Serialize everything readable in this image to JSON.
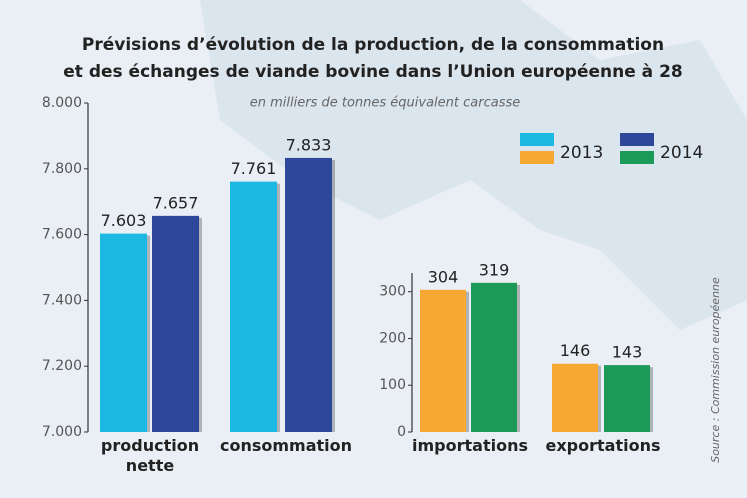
{
  "chart_data": [
    {
      "type": "bar",
      "title": [
        "Prévisions d’évolution de la production, de la consommation",
        "et des échanges de viande bovine dans l’Union européenne à 28"
      ],
      "subtitle": "en milliers de tonnes équivalent carcasse",
      "source": "Source : Commission européenne",
      "categories": [
        "production nette",
        "consommation"
      ],
      "series": [
        {
          "name": "2013",
          "color": "#1bb8e4",
          "values": [
            7603,
            7761
          ],
          "value_labels": [
            "7.603",
            "7.761"
          ]
        },
        {
          "name": "2014",
          "color": "#2e4899",
          "values": [
            7657,
            7833
          ],
          "value_labels": [
            "7.657",
            "7.833"
          ]
        }
      ],
      "ylim": [
        7000,
        8000
      ],
      "yticks": [
        {
          "value": 7000,
          "label": "7.000"
        },
        {
          "value": 7200,
          "label": "7.200"
        },
        {
          "value": 7400,
          "label": "7.400"
        },
        {
          "value": 7600,
          "label": "7.600"
        },
        {
          "value": 7800,
          "label": "7.800"
        },
        {
          "value": 8000,
          "label": "8.000"
        }
      ],
      "grid": false
    },
    {
      "type": "bar",
      "categories": [
        "importations",
        "exportations"
      ],
      "series": [
        {
          "name": "2013",
          "color": "#f6a832",
          "values": [
            304,
            146
          ]
        },
        {
          "name": "2014",
          "color": "#1c9a58",
          "values": [
            319,
            143
          ]
        }
      ],
      "ylim": [
        0,
        340
      ],
      "yticks": [
        0,
        100,
        200,
        300
      ],
      "grid": false
    }
  ]
}
